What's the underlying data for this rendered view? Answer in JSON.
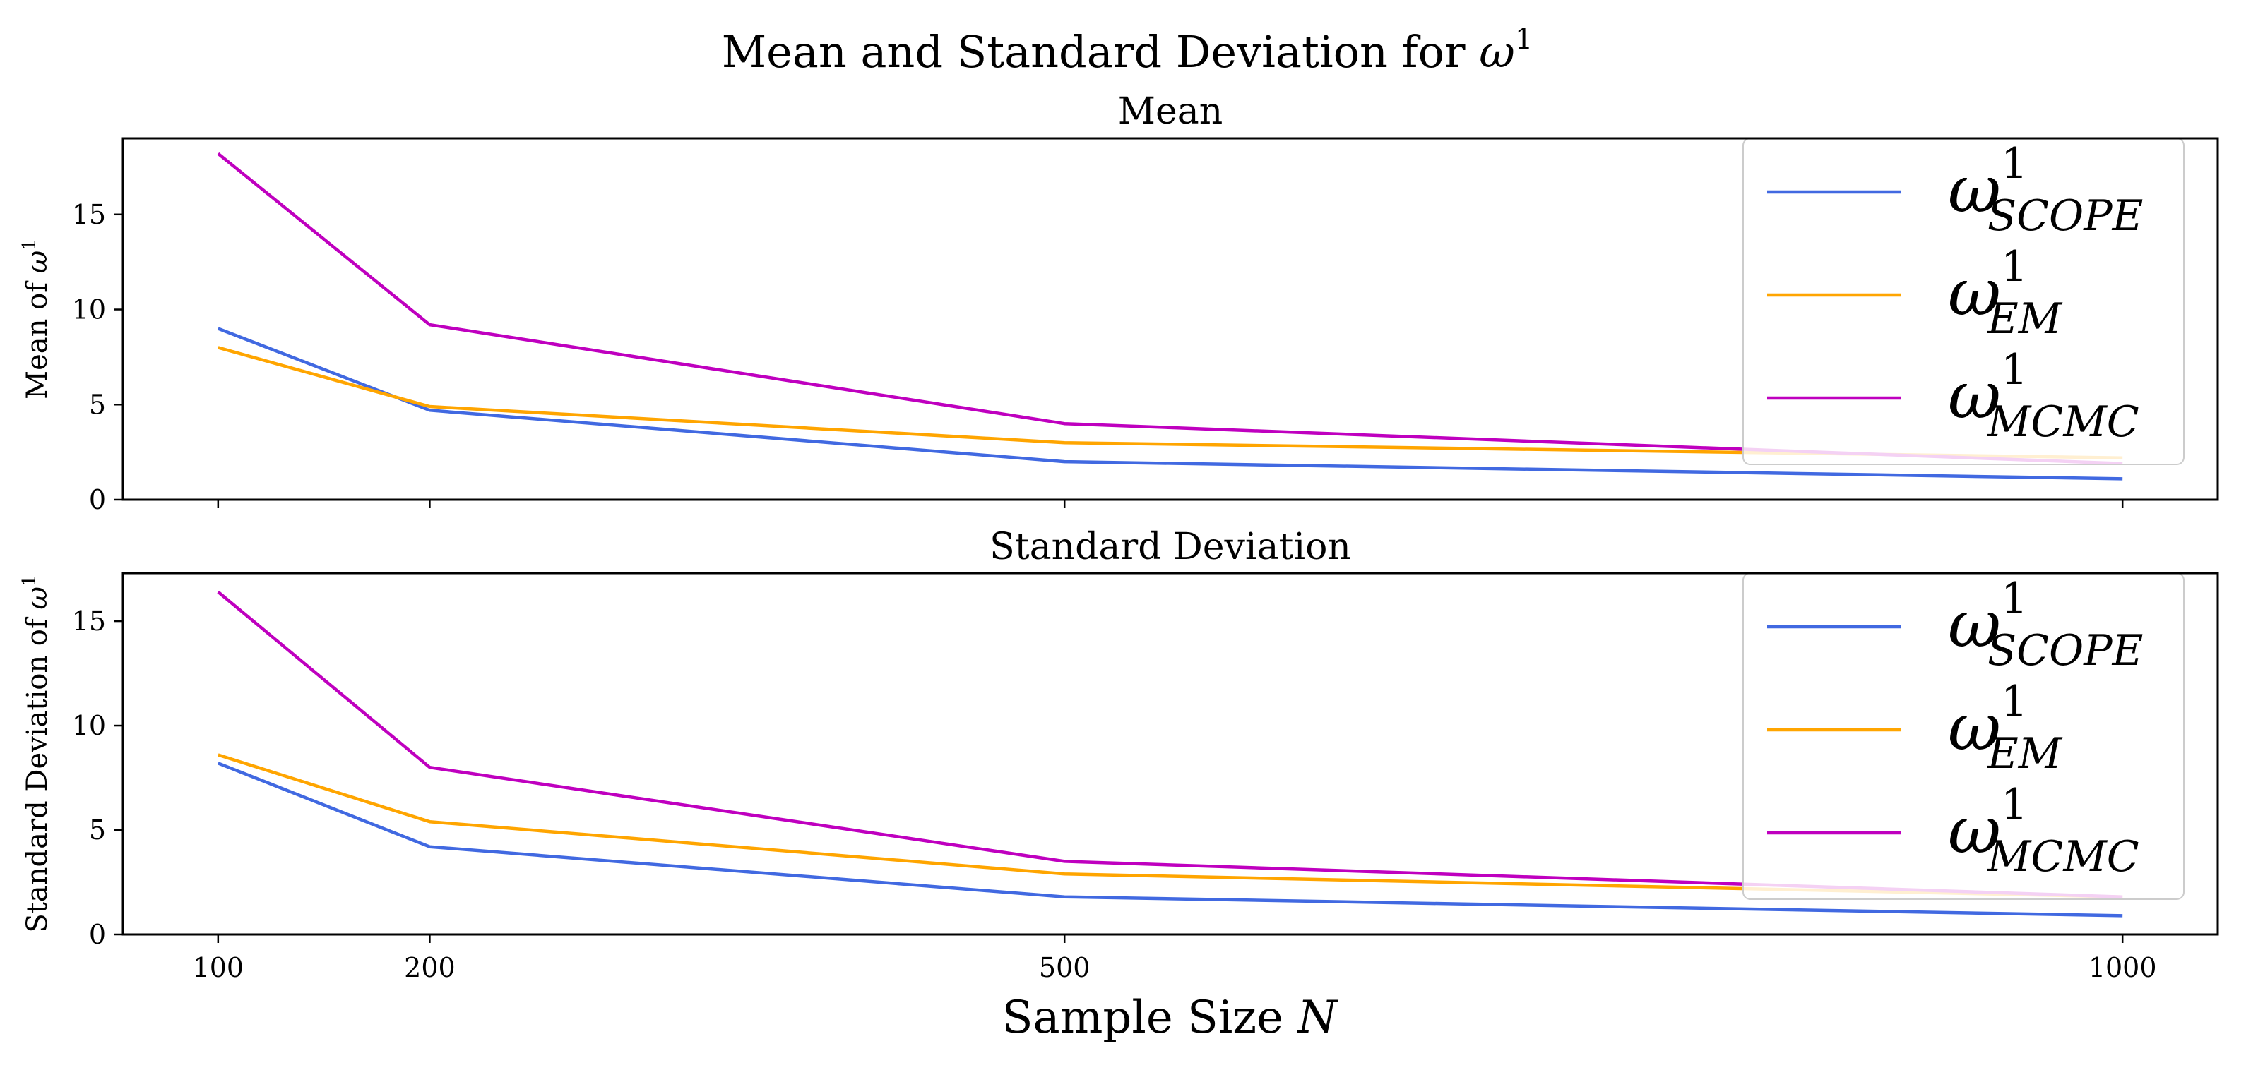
{
  "figure": {
    "suptitle_text": "Mean and Standard Deviation for ",
    "suptitle_symbol": "ω",
    "suptitle_sup": "1",
    "xlabel_text": "Sample Size ",
    "xlabel_symbol": "N"
  },
  "colors": {
    "scope": "#4169e1",
    "em": "#ffa500",
    "mcmc": "#bf00bf",
    "axes": "#000000",
    "background": "#ffffff"
  },
  "chart_data": [
    {
      "type": "line",
      "title": "Mean",
      "xlabel": "",
      "ylabel_text": "Mean of ",
      "ylabel_symbol": "ω",
      "ylabel_sup": "1",
      "x": [
        100,
        200,
        500,
        1000
      ],
      "xlim": [
        55,
        1045
      ],
      "ylim": [
        0,
        19
      ],
      "xticks": [
        100,
        200,
        500,
        1000
      ],
      "xtick_labels_visible": false,
      "yticks": [
        0,
        5,
        10,
        15
      ],
      "legend_position": "top-right",
      "series": [
        {
          "key": "scope",
          "name": "ω",
          "sup": "1",
          "sub": "SCOPE",
          "values": [
            9.0,
            4.7,
            2.0,
            1.1
          ]
        },
        {
          "key": "em",
          "name": "ω",
          "sup": "1",
          "sub": "EM",
          "values": [
            8.0,
            4.9,
            3.0,
            2.2
          ]
        },
        {
          "key": "mcmc",
          "name": "ω",
          "sup": "1",
          "sub": "MCMC",
          "values": [
            18.2,
            9.2,
            4.0,
            1.9
          ]
        }
      ]
    },
    {
      "type": "line",
      "title": "Standard Deviation",
      "xlabel": "",
      "ylabel_text": "Standard Deviation of ",
      "ylabel_symbol": "ω",
      "ylabel_sup": "1",
      "x": [
        100,
        200,
        500,
        1000
      ],
      "xlim": [
        55,
        1045
      ],
      "ylim": [
        0,
        17.3
      ],
      "xticks": [
        100,
        200,
        500,
        1000
      ],
      "xtick_labels_visible": true,
      "yticks": [
        0,
        5,
        10,
        15
      ],
      "legend_position": "top-right",
      "series": [
        {
          "key": "scope",
          "name": "ω",
          "sup": "1",
          "sub": "SCOPE",
          "values": [
            8.2,
            4.2,
            1.8,
            0.9
          ]
        },
        {
          "key": "em",
          "name": "ω",
          "sup": "1",
          "sub": "EM",
          "values": [
            8.6,
            5.4,
            2.9,
            1.8
          ]
        },
        {
          "key": "mcmc",
          "name": "ω",
          "sup": "1",
          "sub": "MCMC",
          "values": [
            16.4,
            8.0,
            3.5,
            1.8
          ]
        }
      ]
    }
  ]
}
